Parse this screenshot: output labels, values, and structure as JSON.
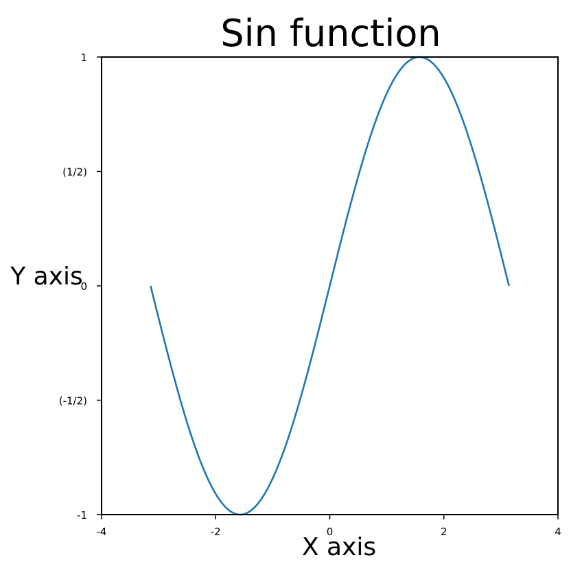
{
  "chart_data": {
    "type": "line",
    "title": "Sin function",
    "xlabel": "X axis",
    "ylabel": "Y axis",
    "xlim": [
      -4,
      4
    ],
    "ylim": [
      -1,
      1
    ],
    "x_ticks": [
      {
        "value": -4,
        "label": "-4"
      },
      {
        "value": -2,
        "label": "-2"
      },
      {
        "value": 0,
        "label": "0"
      },
      {
        "value": 2,
        "label": "2"
      },
      {
        "value": 4,
        "label": "4"
      }
    ],
    "y_ticks": [
      {
        "value": -1,
        "label": "-1"
      },
      {
        "value": -0.5,
        "label": "(-1/2)"
      },
      {
        "value": 0,
        "label": "0"
      },
      {
        "value": 0.5,
        "label": "(1/2)"
      },
      {
        "value": 1,
        "label": "1"
      }
    ],
    "grid": false,
    "series": [
      {
        "function": "sin(x)",
        "x_range": [
          -3.1416,
          3.1416
        ],
        "color": "#1f77b4"
      }
    ]
  }
}
